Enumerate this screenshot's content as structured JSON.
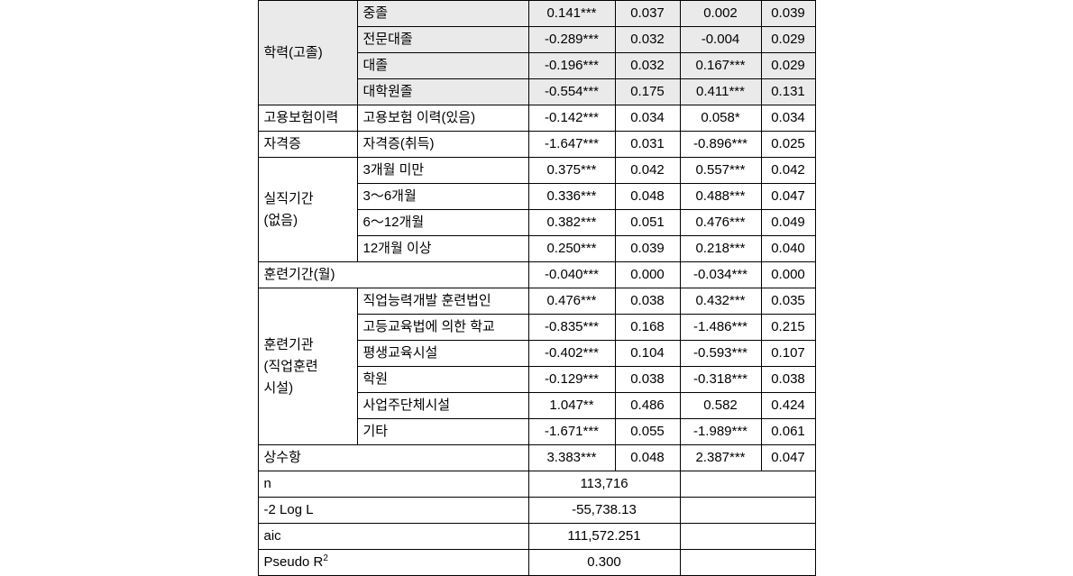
{
  "shaded_group": {
    "label": "학력(고졸)",
    "rows": [
      {
        "sub": "중졸",
        "a": "0.141***",
        "b": "0.037",
        "c": "0.002",
        "d": "0.039"
      },
      {
        "sub": "전문대졸",
        "a": "-0.289***",
        "b": "0.032",
        "c": "-0.004",
        "d": "0.029"
      },
      {
        "sub": "대졸",
        "a": "-0.196***",
        "b": "0.032",
        "c": "0.167***",
        "d": "0.029"
      },
      {
        "sub": "대학원졸",
        "a": "-0.554***",
        "b": "0.175",
        "c": "0.411***",
        "d": "0.131"
      }
    ]
  },
  "single1": {
    "label": "고용보험이력",
    "sub": "고용보험 이력(있음)",
    "a": "-0.142***",
    "b": "0.034",
    "c": "0.058*",
    "d": "0.034"
  },
  "single2": {
    "label": "자격증",
    "sub": "자격증(취득)",
    "a": "-1.647***",
    "b": "0.031",
    "c": "-0.896***",
    "d": "0.025"
  },
  "group2": {
    "label_line1": "실직기간",
    "label_line2": "(없음)",
    "rows": [
      {
        "sub": "3개월 미만",
        "a": "0.375***",
        "b": "0.042",
        "c": "0.557***",
        "d": "0.042"
      },
      {
        "sub": "3～6개월",
        "a": "0.336***",
        "b": "0.048",
        "c": "0.488***",
        "d": "0.047"
      },
      {
        "sub": "6～12개월",
        "a": "0.382***",
        "b": "0.051",
        "c": "0.476***",
        "d": "0.049"
      },
      {
        "sub": "12개월 이상",
        "a": "0.250***",
        "b": "0.039",
        "c": "0.218***",
        "d": "0.040"
      }
    ]
  },
  "single3": {
    "label": "훈련기간(월)",
    "a": "-0.040***",
    "b": "0.000",
    "c": "-0.034***",
    "d": "0.000"
  },
  "group3": {
    "label_line1": "훈련기관",
    "label_line2": "(직업훈련",
    "label_line3": "시설)",
    "rows": [
      {
        "sub": "직업능력개발 훈련법인",
        "a": "0.476***",
        "b": "0.038",
        "c": "0.432***",
        "d": "0.035"
      },
      {
        "sub": "고등교육법에 의한 학교",
        "a": "-0.835***",
        "b": "0.168",
        "c": "-1.486***",
        "d": "0.215"
      },
      {
        "sub": "평생교육시설",
        "a": "-0.402***",
        "b": "0.104",
        "c": "-0.593***",
        "d": "0.107"
      },
      {
        "sub": "학원",
        "a": "-0.129***",
        "b": "0.038",
        "c": "-0.318***",
        "d": "0.038"
      },
      {
        "sub": "사업주단체시설",
        "a": "1.047**",
        "b": "0.486",
        "c": "0.582",
        "d": "0.424"
      },
      {
        "sub": "기타",
        "a": "-1.671***",
        "b": "0.055",
        "c": "-1.989***",
        "d": "0.061"
      }
    ]
  },
  "constant": {
    "label": "상수항",
    "a": "3.383***",
    "b": "0.048",
    "c": "2.387***",
    "d": "0.047"
  },
  "footer": [
    {
      "label": "n",
      "val": "113,716"
    },
    {
      "label": "-2 Log L",
      "val": "-55,738.13"
    },
    {
      "label": "aic",
      "val": "111,572.251"
    },
    {
      "label_html": "Pseudo R<sup>2</sup>",
      "val": "0.300"
    }
  ],
  "styles": {
    "shade_bg": "#eaeaea",
    "font_size": 15
  }
}
